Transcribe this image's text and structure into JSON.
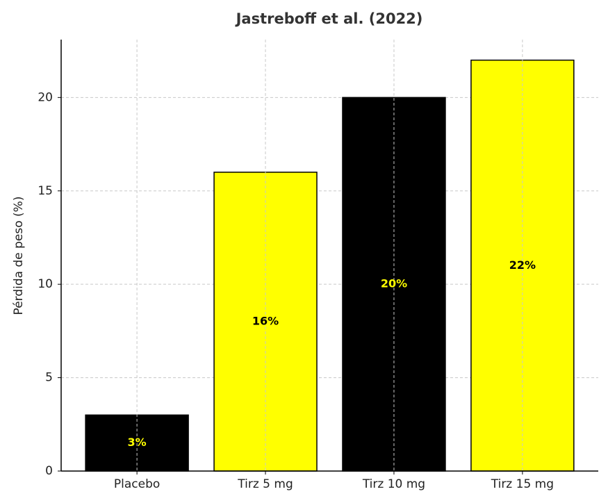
{
  "chart_data": {
    "type": "bar",
    "title": "Jastreboff et al. (2022)",
    "y_label": "Pérdida de peso (%)",
    "categories": [
      "Placebo",
      "Tirz 5 mg",
      "Tirz 10 mg",
      "Tirz 15 mg"
    ],
    "values": [
      3,
      16,
      20,
      22
    ],
    "value_labels": [
      "3%",
      "16%",
      "20%",
      "22%"
    ],
    "colors": [
      "#000000",
      "#ffff00",
      "#000000",
      "#ffff00"
    ],
    "label_colors": [
      "#ffff00",
      "#000000",
      "#ffff00",
      "#000000"
    ],
    "edge_color": "#000000",
    "ylim": [
      0,
      23.1
    ],
    "yticks": [
      0,
      5,
      10,
      15,
      20
    ],
    "grid": true
  }
}
